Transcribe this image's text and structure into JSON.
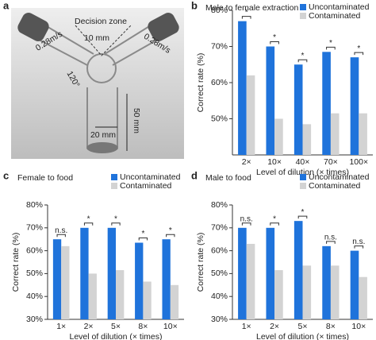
{
  "photo": {
    "label": "a",
    "texts": [
      "Decision zone",
      "10 mm",
      "0.28m/s",
      "0.28m/s",
      "120°",
      "50 mm",
      "20 mm"
    ]
  },
  "chart_data": [
    {
      "type": "bar",
      "panel": "b",
      "title": "Male to female extraction",
      "xlabel": "Level of dilution (× times)",
      "ylabel": "Correct rate (%)",
      "categories": [
        "2×",
        "10×",
        "40×",
        "70×",
        "100×"
      ],
      "series": [
        {
          "name": "Uncontaminated",
          "color": "#1f73db",
          "values": [
            77,
            70,
            65,
            68.5,
            67
          ]
        },
        {
          "name": "Contaminated",
          "color": "#d3d3d3",
          "values": [
            62,
            50,
            48.5,
            51.5,
            51.5
          ]
        }
      ],
      "annotations": [
        "*",
        "*",
        "*",
        "*",
        "*"
      ],
      "ylim": [
        40,
        80
      ],
      "yticks": [
        {
          "value": 50,
          "label": "50%"
        },
        {
          "value": 60,
          "label": "60%"
        },
        {
          "value": 70,
          "label": "70%"
        },
        {
          "value": 80,
          "label": "80%"
        }
      ],
      "legend": "top-right"
    },
    {
      "type": "bar",
      "panel": "c",
      "title": "Female to food",
      "xlabel": "Level of dilution (× times)",
      "ylabel": "Correct rate (%)",
      "categories": [
        "1×",
        "2×",
        "5×",
        "8×",
        "10×"
      ],
      "series": [
        {
          "name": "Uncontaminated",
          "color": "#1f73db",
          "values": [
            65,
            70,
            70,
            63.5,
            65
          ]
        },
        {
          "name": "Contaminated",
          "color": "#d3d3d3",
          "values": [
            62,
            50,
            51.5,
            46.5,
            45
          ]
        }
      ],
      "annotations": [
        "n.s.",
        "*",
        "*",
        "*",
        "*"
      ],
      "ylim": [
        30,
        80
      ],
      "yticks": [
        {
          "value": 30,
          "label": "30%"
        },
        {
          "value": 40,
          "label": "40%"
        },
        {
          "value": 50,
          "label": "50%"
        },
        {
          "value": 60,
          "label": "60%"
        },
        {
          "value": 70,
          "label": "70%"
        },
        {
          "value": 80,
          "label": "80%"
        }
      ],
      "legend": "top-right"
    },
    {
      "type": "bar",
      "panel": "d",
      "title": "Male to food",
      "xlabel": "Level of dilution (× times)",
      "ylabel": "Correct rate (%)",
      "categories": [
        "1×",
        "2×",
        "5×",
        "8×",
        "10×"
      ],
      "series": [
        {
          "name": "Uncontaminated",
          "color": "#1f73db",
          "values": [
            70,
            70,
            73,
            62,
            60
          ]
        },
        {
          "name": "Contaminated",
          "color": "#d3d3d3",
          "values": [
            63,
            51.5,
            53.5,
            53.5,
            48.5
          ]
        }
      ],
      "annotations": [
        "n.s.",
        "*",
        "*",
        "n.s.",
        "n.s."
      ],
      "ylim": [
        30,
        80
      ],
      "yticks": [
        {
          "value": 30,
          "label": "30%"
        },
        {
          "value": 40,
          "label": "40%"
        },
        {
          "value": 50,
          "label": "50%"
        },
        {
          "value": 60,
          "label": "60%"
        },
        {
          "value": 70,
          "label": "70%"
        },
        {
          "value": 80,
          "label": "80%"
        }
      ],
      "legend": "top-right"
    }
  ]
}
